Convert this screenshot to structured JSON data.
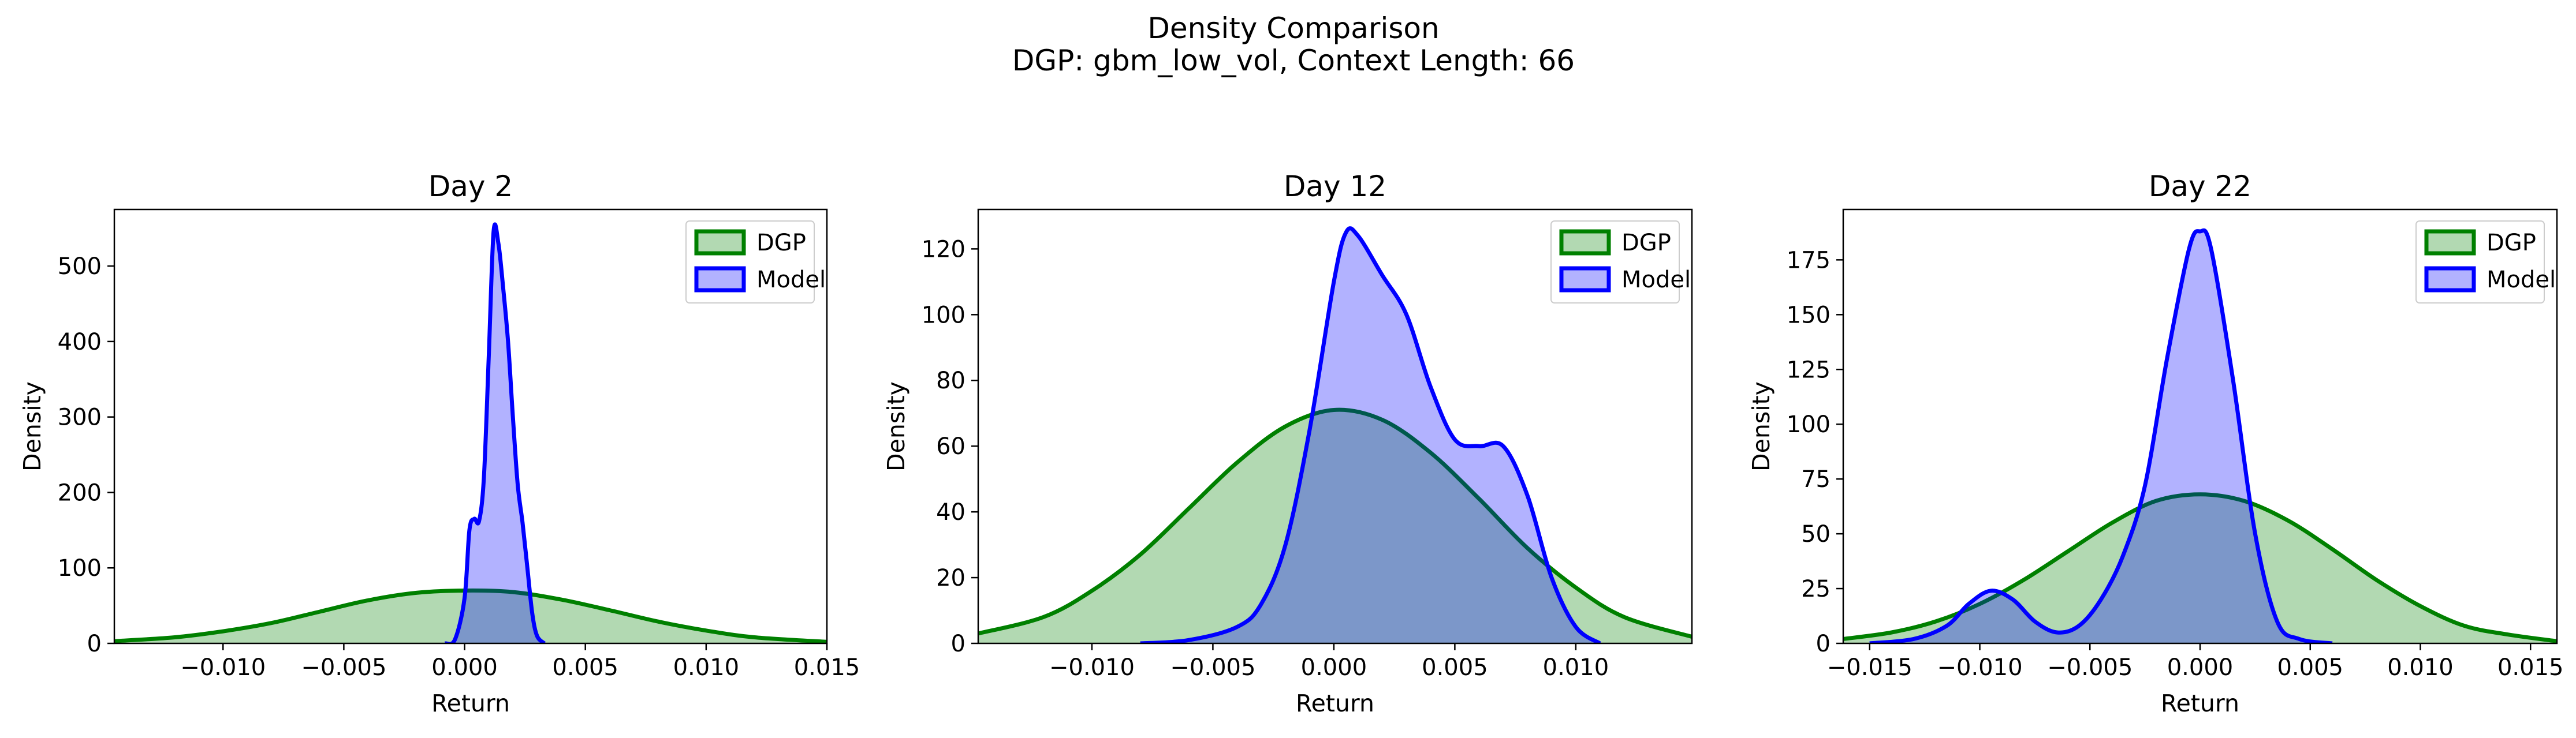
{
  "figure": {
    "title_line1": "Density Comparison",
    "title_line2": "DGP: gbm_low_vol, Context Length: 66"
  },
  "chart_data": [
    {
      "type": "area",
      "title": "Day 2",
      "xlabel": "Return",
      "ylabel": "Density",
      "xlim": [
        -0.0145,
        0.015
      ],
      "ylim": [
        0,
        575
      ],
      "xticks": [
        -0.01,
        -0.005,
        0.0,
        0.005,
        0.01,
        0.015
      ],
      "xtick_labels": [
        "−0.010",
        "−0.005",
        "0.000",
        "0.005",
        "0.010",
        "0.015"
      ],
      "yticks": [
        0,
        100,
        200,
        300,
        400,
        500
      ],
      "ytick_labels": [
        "0",
        "100",
        "200",
        "300",
        "400",
        "500"
      ],
      "legend": "top-right",
      "grid": false,
      "series": [
        {
          "name": "DGP",
          "color": "#008000",
          "x": [
            -0.0145,
            -0.012,
            -0.01,
            -0.008,
            -0.006,
            -0.004,
            -0.002,
            0.0,
            0.002,
            0.004,
            0.006,
            0.008,
            0.01,
            0.012,
            0.015
          ],
          "y": [
            3,
            8,
            16,
            27,
            42,
            57,
            67,
            70,
            68,
            58,
            44,
            29,
            17,
            8,
            2
          ]
        },
        {
          "name": "Model",
          "color": "#0000ff",
          "x": [
            -0.0008,
            -0.0004,
            0.0,
            0.0002,
            0.0004,
            0.0006,
            0.0008,
            0.001,
            0.0012,
            0.0014,
            0.0016,
            0.0018,
            0.002,
            0.0022,
            0.0024,
            0.0026,
            0.0028,
            0.003,
            0.0033
          ],
          "y": [
            0,
            5,
            60,
            150,
            165,
            162,
            220,
            380,
            545,
            530,
            470,
            400,
            300,
            210,
            160,
            100,
            40,
            10,
            0
          ]
        }
      ]
    },
    {
      "type": "area",
      "title": "Day 12",
      "xlabel": "Return",
      "ylabel": "Density",
      "xlim": [
        -0.0147,
        0.0148
      ],
      "ylim": [
        0,
        132
      ],
      "xticks": [
        -0.01,
        -0.005,
        0.0,
        0.005,
        0.01
      ],
      "xtick_labels": [
        "−0.010",
        "−0.005",
        "0.000",
        "0.005",
        "0.010"
      ],
      "yticks": [
        0,
        20,
        40,
        60,
        80,
        100,
        120
      ],
      "ytick_labels": [
        "0",
        "20",
        "40",
        "60",
        "80",
        "100",
        "120"
      ],
      "legend": "top-right",
      "grid": false,
      "series": [
        {
          "name": "DGP",
          "color": "#008000",
          "x": [
            -0.0147,
            -0.012,
            -0.01,
            -0.008,
            -0.006,
            -0.004,
            -0.002,
            0.0,
            0.002,
            0.004,
            0.006,
            0.008,
            0.01,
            0.012,
            0.0148
          ],
          "y": [
            3,
            8,
            16,
            27,
            41,
            55,
            66,
            71,
            68,
            58,
            44,
            29,
            17,
            8,
            2
          ]
        },
        {
          "name": "Model",
          "color": "#0000ff",
          "x": [
            -0.008,
            -0.006,
            -0.004,
            -0.003,
            -0.002,
            -0.001,
            0.0,
            0.0005,
            0.001,
            0.002,
            0.003,
            0.004,
            0.005,
            0.006,
            0.007,
            0.008,
            0.009,
            0.01,
            0.011
          ],
          "y": [
            0,
            1,
            5,
            12,
            30,
            65,
            110,
            125,
            124,
            112,
            100,
            78,
            62,
            60,
            60,
            45,
            20,
            5,
            0
          ]
        }
      ]
    },
    {
      "type": "area",
      "title": "Day 22",
      "xlabel": "Return",
      "ylabel": "Density",
      "xlim": [
        -0.0162,
        0.0162
      ],
      "ylim": [
        0,
        198
      ],
      "xticks": [
        -0.015,
        -0.01,
        -0.005,
        0.0,
        0.005,
        0.01,
        0.015
      ],
      "xtick_labels": [
        "−0.015",
        "−0.010",
        "−0.005",
        "0.000",
        "0.005",
        "0.010",
        "0.015"
      ],
      "yticks": [
        0,
        25,
        50,
        75,
        100,
        125,
        150,
        175
      ],
      "ytick_labels": [
        "0",
        "25",
        "50",
        "75",
        "100",
        "125",
        "150",
        "175"
      ],
      "legend": "top-right",
      "grid": false,
      "series": [
        {
          "name": "DGP",
          "color": "#008000",
          "x": [
            -0.0162,
            -0.014,
            -0.012,
            -0.01,
            -0.008,
            -0.006,
            -0.004,
            -0.002,
            0.0,
            0.002,
            0.004,
            0.006,
            0.008,
            0.01,
            0.012,
            0.014,
            0.0162
          ],
          "y": [
            2,
            5,
            10,
            18,
            29,
            42,
            55,
            65,
            68,
            65,
            56,
            43,
            29,
            17,
            8,
            4,
            1
          ]
        },
        {
          "name": "Model",
          "color": "#0000ff",
          "x": [
            -0.015,
            -0.013,
            -0.0115,
            -0.0105,
            -0.0095,
            -0.0085,
            -0.0075,
            -0.0065,
            -0.0055,
            -0.0045,
            -0.0035,
            -0.0025,
            -0.0015,
            -0.0005,
            0.0,
            0.0005,
            0.0015,
            0.0025,
            0.0035,
            0.0045,
            0.006
          ],
          "y": [
            0,
            2,
            8,
            18,
            24,
            20,
            10,
            5,
            8,
            20,
            40,
            72,
            130,
            180,
            188,
            180,
            120,
            50,
            10,
            2,
            0
          ]
        }
      ]
    }
  ]
}
